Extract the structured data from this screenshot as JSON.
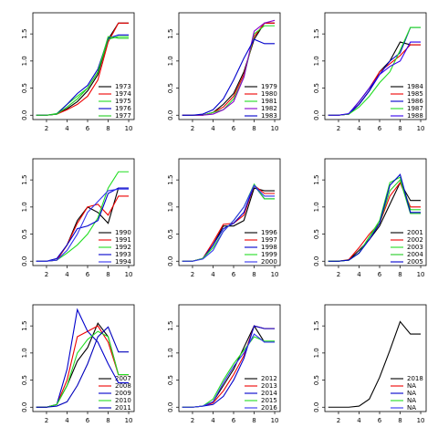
{
  "chart_data": [
    {
      "type": "line",
      "x": [
        1,
        2,
        3,
        4,
        5,
        6,
        7,
        8,
        9,
        10
      ],
      "xlim": [
        0.67,
        10.53
      ],
      "xticks": [
        2,
        4,
        6,
        8,
        10
      ],
      "ylim": [
        -0.08,
        1.89
      ],
      "yticks": [
        {
          "value": 0,
          "label": "0.0"
        },
        {
          "value": 0.5,
          "label": "0.5"
        },
        {
          "value": 1,
          "label": "1.0"
        },
        {
          "value": 1.5,
          "label": "1.5"
        }
      ],
      "series": [
        {
          "name": "1973",
          "color": "#000000",
          "values": [
            0,
            0,
            0.02,
            0.12,
            0.25,
            0.45,
            0.75,
            1.4,
            1.7,
            1.7
          ]
        },
        {
          "name": "1974",
          "color": "#ee0000",
          "values": [
            0,
            0,
            0.02,
            0.1,
            0.2,
            0.35,
            0.65,
            1.35,
            1.7,
            1.7
          ]
        },
        {
          "name": "1975",
          "color": "#22dd22",
          "values": [
            0,
            0,
            0.03,
            0.2,
            0.35,
            0.5,
            0.8,
            1.4,
            1.45,
            1.45
          ]
        },
        {
          "name": "1976",
          "color": "#0000cc",
          "values": [
            0,
            0,
            0.02,
            0.2,
            0.4,
            0.55,
            0.85,
            1.42,
            1.48,
            1.48
          ]
        },
        {
          "name": "1977",
          "color": "#22cc22",
          "values": [
            0,
            0,
            0.02,
            0.15,
            0.3,
            0.5,
            0.8,
            1.45,
            1.42,
            1.42
          ]
        }
      ]
    },
    {
      "type": "line",
      "x": [
        1,
        2,
        3,
        4,
        5,
        6,
        7,
        8,
        9,
        10
      ],
      "xlim": [
        0.67,
        10.53
      ],
      "xticks": [
        2,
        4,
        6,
        8,
        10
      ],
      "ylim": [
        -0.08,
        1.89
      ],
      "yticks": [
        {
          "value": 0,
          "label": "0.0"
        },
        {
          "value": 0.5,
          "label": "0.5"
        },
        {
          "value": 1,
          "label": "1.0"
        },
        {
          "value": 1.5,
          "label": "1.5"
        }
      ],
      "series": [
        {
          "name": "1979",
          "color": "#000000",
          "values": [
            0,
            0,
            0,
            0.05,
            0.2,
            0.4,
            0.8,
            1.4,
            1.7,
            1.7
          ]
        },
        {
          "name": "1980",
          "color": "#ee0000",
          "values": [
            0,
            0,
            0,
            0.05,
            0.15,
            0.35,
            0.75,
            1.45,
            1.7,
            1.7
          ]
        },
        {
          "name": "1981",
          "color": "#22dd22",
          "values": [
            0,
            0,
            0,
            0.05,
            0.1,
            0.3,
            0.7,
            1.5,
            1.65,
            1.65
          ]
        },
        {
          "name": "1982",
          "color": "#8800cc",
          "values": [
            0,
            0,
            0,
            0.02,
            0.1,
            0.25,
            0.7,
            1.55,
            1.7,
            1.75
          ]
        },
        {
          "name": "1983",
          "color": "#0000cc",
          "values": [
            0,
            0,
            0.02,
            0.1,
            0.3,
            0.65,
            1.05,
            1.4,
            1.32,
            1.32
          ]
        }
      ]
    },
    {
      "type": "line",
      "x": [
        1,
        2,
        3,
        4,
        5,
        6,
        7,
        8,
        9,
        10
      ],
      "xlim": [
        0.67,
        10.53
      ],
      "xticks": [
        2,
        4,
        6,
        8,
        10
      ],
      "ylim": [
        -0.08,
        1.89
      ],
      "yticks": [
        {
          "value": 0,
          "label": "0.0"
        },
        {
          "value": 0.5,
          "label": "0.5"
        },
        {
          "value": 1,
          "label": "1.0"
        },
        {
          "value": 1.5,
          "label": "1.5"
        }
      ],
      "series": [
        {
          "name": "1984",
          "color": "#000000",
          "values": [
            0,
            0,
            0.02,
            0.2,
            0.45,
            0.8,
            1.0,
            1.35,
            1.3,
            1.3
          ]
        },
        {
          "name": "1985",
          "color": "#ee0000",
          "values": [
            0,
            0,
            0.02,
            0.25,
            0.5,
            0.8,
            0.95,
            1.1,
            1.3,
            1.3
          ]
        },
        {
          "name": "1986",
          "color": "#0000cc",
          "values": [
            0,
            0,
            0.02,
            0.2,
            0.45,
            0.75,
            1.0,
            1.15,
            1.62,
            1.62
          ]
        },
        {
          "name": "1987",
          "color": "#22dd22",
          "values": [
            0,
            0,
            0.02,
            0.15,
            0.35,
            0.6,
            0.8,
            1.2,
            1.62,
            1.62
          ]
        },
        {
          "name": "1988",
          "color": "#3300ee",
          "values": [
            0,
            0,
            0.03,
            0.25,
            0.5,
            0.75,
            0.9,
            1.0,
            1.35,
            1.35
          ]
        }
      ]
    },
    {
      "type": "line",
      "x": [
        1,
        2,
        3,
        4,
        5,
        6,
        7,
        8,
        9,
        10
      ],
      "xlim": [
        0.67,
        10.53
      ],
      "xticks": [
        2,
        4,
        6,
        8,
        10
      ],
      "ylim": [
        -0.08,
        1.89
      ],
      "yticks": [
        {
          "value": 0,
          "label": "0.0"
        },
        {
          "value": 0.5,
          "label": "0.5"
        },
        {
          "value": 1,
          "label": "1.0"
        },
        {
          "value": 1.5,
          "label": "1.5"
        }
      ],
      "series": [
        {
          "name": "1990",
          "color": "#000000",
          "values": [
            0,
            0,
            0.02,
            0.3,
            0.75,
            1.0,
            0.9,
            0.7,
            1.35,
            1.35
          ]
        },
        {
          "name": "1991",
          "color": "#ee0000",
          "values": [
            0,
            0,
            0.02,
            0.3,
            0.7,
            1.0,
            1.05,
            0.85,
            1.2,
            1.2
          ]
        },
        {
          "name": "1992",
          "color": "#22dd22",
          "values": [
            0,
            0,
            0.02,
            0.15,
            0.3,
            0.5,
            0.8,
            1.35,
            1.65,
            1.65
          ]
        },
        {
          "name": "1993",
          "color": "#0000cc",
          "values": [
            0,
            0,
            0.05,
            0.3,
            0.6,
            0.65,
            0.75,
            1.25,
            1.35,
            1.35
          ]
        },
        {
          "name": "1994",
          "color": "#3333ee",
          "values": [
            0,
            0,
            0.02,
            0.2,
            0.5,
            0.9,
            1.1,
            1.3,
            1.33,
            1.33
          ]
        }
      ]
    },
    {
      "type": "line",
      "x": [
        1,
        2,
        3,
        4,
        5,
        6,
        7,
        8,
        9,
        10
      ],
      "xlim": [
        0.67,
        10.53
      ],
      "xticks": [
        2,
        4,
        6,
        8,
        10
      ],
      "ylim": [
        -0.08,
        1.89
      ],
      "yticks": [
        {
          "value": 0,
          "label": "0.0"
        },
        {
          "value": 0.5,
          "label": "0.5"
        },
        {
          "value": 1,
          "label": "1.0"
        },
        {
          "value": 1.5,
          "label": "1.5"
        }
      ],
      "series": [
        {
          "name": "1996",
          "color": "#000000",
          "values": [
            0,
            0,
            0.05,
            0.3,
            0.65,
            0.65,
            0.75,
            1.35,
            1.3,
            1.3
          ]
        },
        {
          "name": "1997",
          "color": "#ee0000",
          "values": [
            0,
            0,
            0.05,
            0.35,
            0.68,
            0.7,
            0.85,
            1.4,
            1.25,
            1.25
          ]
        },
        {
          "name": "1998",
          "color": "#0000cc",
          "values": [
            0,
            0,
            0.05,
            0.3,
            0.6,
            0.7,
            0.9,
            1.4,
            1.15,
            1.15
          ]
        },
        {
          "name": "1999",
          "color": "#22dd22",
          "values": [
            0,
            0,
            0.05,
            0.25,
            0.55,
            0.75,
            1.0,
            1.42,
            1.15,
            1.15
          ]
        },
        {
          "name": "2000",
          "color": "#3333ee",
          "values": [
            0,
            0,
            0.04,
            0.2,
            0.55,
            0.75,
            1.0,
            1.4,
            1.2,
            1.2
          ]
        }
      ]
    },
    {
      "type": "line",
      "x": [
        1,
        2,
        3,
        4,
        5,
        6,
        7,
        8,
        9,
        10
      ],
      "xlim": [
        0.67,
        10.53
      ],
      "xticks": [
        2,
        4,
        6,
        8,
        10
      ],
      "ylim": [
        -0.08,
        1.89
      ],
      "yticks": [
        {
          "value": 0,
          "label": "0.0"
        },
        {
          "value": 0.5,
          "label": "0.5"
        },
        {
          "value": 1,
          "label": "1.0"
        },
        {
          "value": 1.5,
          "label": "1.5"
        }
      ],
      "series": [
        {
          "name": "2001",
          "color": "#000000",
          "values": [
            0,
            0,
            0.02,
            0.2,
            0.4,
            0.65,
            1.05,
            1.45,
            1.12,
            1.12
          ]
        },
        {
          "name": "2002",
          "color": "#ee0000",
          "values": [
            0,
            0,
            0.03,
            0.25,
            0.5,
            0.7,
            1.2,
            1.45,
            1.0,
            1.0
          ]
        },
        {
          "name": "2003",
          "color": "#22dd22",
          "values": [
            0,
            0,
            0.02,
            0.15,
            0.45,
            0.75,
            1.45,
            1.55,
            0.95,
            0.95
          ]
        },
        {
          "name": "2004",
          "color": "#22cc22",
          "values": [
            0,
            0,
            0.02,
            0.15,
            0.45,
            0.7,
            1.3,
            1.5,
            0.88,
            0.88
          ]
        },
        {
          "name": "2005",
          "color": "#0000cc",
          "values": [
            0,
            0,
            0.02,
            0.15,
            0.4,
            0.7,
            1.4,
            1.6,
            0.9,
            0.9
          ]
        }
      ]
    },
    {
      "type": "line",
      "x": [
        1,
        2,
        3,
        4,
        5,
        6,
        7,
        8,
        9,
        10
      ],
      "xlim": [
        0.67,
        10.53
      ],
      "xticks": [
        2,
        4,
        6,
        8,
        10
      ],
      "ylim": [
        -0.08,
        1.89
      ],
      "yticks": [
        {
          "value": 0,
          "label": "0.0"
        },
        {
          "value": 0.5,
          "label": "0.5"
        },
        {
          "value": 1,
          "label": "1.0"
        },
        {
          "value": 1.5,
          "label": "1.5"
        }
      ],
      "series": [
        {
          "name": "2007",
          "color": "#000000",
          "values": [
            0,
            0,
            0.05,
            0.4,
            0.85,
            1.1,
            1.55,
            1.3,
            0.6,
            0.6
          ]
        },
        {
          "name": "2008",
          "color": "#ee0000",
          "values": [
            0,
            0,
            0.05,
            0.5,
            1.3,
            1.4,
            1.5,
            1.2,
            0.6,
            0.6
          ]
        },
        {
          "name": "2009",
          "color": "#0000cc",
          "values": [
            0,
            0,
            0.05,
            0.7,
            1.8,
            1.4,
            1.2,
            0.8,
            0.45,
            0.45
          ]
        },
        {
          "name": "2010",
          "color": "#22dd22",
          "values": [
            0,
            0,
            0.05,
            0.4,
            1.0,
            1.25,
            1.4,
            1.3,
            0.6,
            0.6
          ]
        },
        {
          "name": "2011",
          "color": "#0000bb",
          "values": [
            0,
            0,
            0.02,
            0.1,
            0.4,
            0.8,
            1.3,
            1.48,
            1.02,
            1.02
          ]
        }
      ]
    },
    {
      "type": "line",
      "x": [
        1,
        2,
        3,
        4,
        5,
        6,
        7,
        8,
        9,
        10
      ],
      "xlim": [
        0.67,
        10.53
      ],
      "xticks": [
        2,
        4,
        6,
        8,
        10
      ],
      "ylim": [
        -0.08,
        1.89
      ],
      "yticks": [
        {
          "value": 0,
          "label": "0.0"
        },
        {
          "value": 0.5,
          "label": "0.5"
        },
        {
          "value": 1,
          "label": "1.0"
        },
        {
          "value": 1.5,
          "label": "1.5"
        }
      ],
      "series": [
        {
          "name": "2012",
          "color": "#000000",
          "values": [
            0,
            0,
            0.02,
            0.1,
            0.4,
            0.7,
            1.1,
            1.5,
            1.2,
            1.2
          ]
        },
        {
          "name": "2013",
          "color": "#ee0000",
          "values": [
            0,
            0,
            0.02,
            0.08,
            0.3,
            0.6,
            0.95,
            1.5,
            1.45,
            1.45
          ]
        },
        {
          "name": "2014",
          "color": "#0000cc",
          "values": [
            0,
            0,
            0.02,
            0.05,
            0.2,
            0.5,
            0.9,
            1.5,
            1.45,
            1.45
          ]
        },
        {
          "name": "2015",
          "color": "#22dd22",
          "values": [
            0,
            0,
            0.02,
            0.15,
            0.5,
            0.8,
            1.05,
            1.3,
            1.22,
            1.22
          ]
        },
        {
          "name": "2016",
          "color": "#3333ee",
          "values": [
            0,
            0,
            0.02,
            0.1,
            0.45,
            0.75,
            1.0,
            1.35,
            1.2,
            1.2
          ]
        }
      ]
    },
    {
      "type": "line",
      "x": [
        1,
        2,
        3,
        4,
        5,
        6,
        7,
        8,
        9,
        10
      ],
      "xlim": [
        0.67,
        10.53
      ],
      "xticks": [
        2,
        4,
        6,
        8,
        10
      ],
      "ylim": [
        -0.08,
        1.89
      ],
      "yticks": [
        {
          "value": 0,
          "label": "0.0"
        },
        {
          "value": 0.5,
          "label": "0.5"
        },
        {
          "value": 1,
          "label": "1.0"
        },
        {
          "value": 1.5,
          "label": "1.5"
        }
      ],
      "series": [
        {
          "name": "2018",
          "color": "#000000",
          "values": [
            0,
            0,
            0,
            0.02,
            0.15,
            0.55,
            1.05,
            1.58,
            1.35,
            1.35
          ]
        },
        {
          "name": "NA",
          "color": "#ee0000",
          "values": [
            null,
            null,
            null,
            null,
            null,
            null,
            null,
            null,
            null,
            null
          ]
        },
        {
          "name": "NA",
          "color": "#0000cc",
          "values": [
            null,
            null,
            null,
            null,
            null,
            null,
            null,
            null,
            null,
            null
          ]
        },
        {
          "name": "NA",
          "color": "#22dd22",
          "values": [
            null,
            null,
            null,
            null,
            null,
            null,
            null,
            null,
            null,
            null
          ]
        },
        {
          "name": "NA",
          "color": "#3333ee",
          "values": [
            null,
            null,
            null,
            null,
            null,
            null,
            null,
            null,
            null,
            null
          ]
        }
      ]
    }
  ]
}
